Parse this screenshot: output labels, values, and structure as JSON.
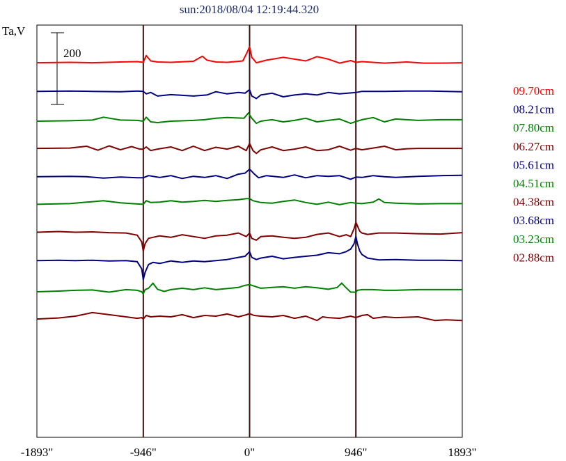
{
  "title": "sun:2018/08/04 12:19:44.320",
  "ylabel": "Ta,V",
  "scale_bar_label": "200",
  "chart_data": {
    "type": "line",
    "xlim": [
      -1893,
      1893
    ],
    "ylim": [
      -100,
      1050
    ],
    "x_tick_values": [
      -1893,
      -946,
      0,
      946,
      1893
    ],
    "x_tick_labels": [
      "-1893\"",
      "-946\"",
      "0\"",
      "946\"",
      "1893\""
    ],
    "vlines": [
      -946,
      0,
      946
    ],
    "scale_bar": {
      "label": "200",
      "value": 200
    },
    "grid": false,
    "legend_position": "right",
    "series": [
      {
        "name": "09.70cm",
        "color": "#ff0000",
        "x": [
          -1893,
          -1600,
          -1400,
          -1150,
          -1000,
          -946,
          -920,
          -880,
          -820,
          -700,
          -500,
          -420,
          -380,
          -300,
          -200,
          -60,
          -20,
          0,
          20,
          60,
          150,
          300,
          500,
          600,
          700,
          800,
          900,
          946,
          1000,
          1200,
          1400,
          1550,
          1700,
          1893
        ],
        "y": [
          945,
          946,
          945,
          947,
          948,
          946,
          965,
          950,
          947,
          946,
          949,
          963,
          952,
          947,
          946,
          950,
          975,
          990,
          960,
          945,
          952,
          960,
          950,
          962,
          955,
          944,
          951,
          946,
          948,
          944,
          947,
          944,
          944,
          945
        ]
      },
      {
        "name": "08.21cm",
        "color": "#000080",
        "x": [
          -1893,
          -1600,
          -1400,
          -1150,
          -1000,
          -946,
          -920,
          -880,
          -820,
          -700,
          -500,
          -380,
          -300,
          -200,
          -100,
          -40,
          0,
          20,
          60,
          100,
          200,
          300,
          400,
          500,
          600,
          700,
          800,
          946,
          1000,
          1200,
          1400,
          1600,
          1893
        ],
        "y": [
          865,
          866,
          865,
          864,
          866,
          865,
          858,
          862,
          852,
          856,
          852,
          855,
          864,
          858,
          862,
          860,
          870,
          852,
          845,
          855,
          860,
          850,
          855,
          858,
          855,
          862,
          858,
          862,
          865,
          865,
          866,
          866,
          864
        ]
      },
      {
        "name": "07.80cm",
        "color": "#008000",
        "x": [
          -1893,
          -1600,
          -1400,
          -1300,
          -1150,
          -1000,
          -946,
          -920,
          -880,
          -820,
          -700,
          -500,
          -400,
          -300,
          -200,
          -50,
          -10,
          20,
          60,
          100,
          200,
          300,
          400,
          500,
          600,
          700,
          800,
          900,
          946,
          1000,
          1100,
          1200,
          1300,
          1500,
          1700,
          1893
        ],
        "y": [
          782,
          783,
          785,
          793,
          785,
          784,
          782,
          793,
          780,
          778,
          782,
          784,
          786,
          790,
          792,
          790,
          805,
          790,
          776,
          782,
          786,
          780,
          784,
          790,
          780,
          784,
          788,
          776,
          781,
          786,
          792,
          780,
          788,
          784,
          786,
          786
        ]
      },
      {
        "name": "06.27cm",
        "color": "#800000",
        "x": [
          -1893,
          -1600,
          -1450,
          -1350,
          -1250,
          -1150,
          -1050,
          -980,
          -946,
          -920,
          -880,
          -820,
          -700,
          -600,
          -500,
          -400,
          -300,
          -200,
          -100,
          -30,
          0,
          30,
          60,
          100,
          200,
          300,
          400,
          500,
          600,
          700,
          800,
          900,
          946,
          1000,
          1100,
          1200,
          1300,
          1400,
          1500,
          1700,
          1893
        ],
        "y": [
          706,
          707,
          712,
          701,
          713,
          702,
          711,
          704,
          704,
          710,
          700,
          704,
          710,
          700,
          712,
          700,
          709,
          704,
          712,
          700,
          720,
          700,
          692,
          702,
          710,
          700,
          704,
          710,
          700,
          702,
          712,
          701,
          706,
          702,
          707,
          712,
          702,
          705,
          706,
          706,
          706
        ]
      },
      {
        "name": "05.61cm",
        "color": "#000080",
        "x": [
          -1893,
          -1600,
          -1450,
          -1300,
          -1150,
          -1000,
          -946,
          -900,
          -800,
          -700,
          -600,
          -500,
          -400,
          -300,
          -200,
          -100,
          -40,
          0,
          40,
          80,
          150,
          300,
          400,
          500,
          600,
          700,
          800,
          900,
          946,
          1000,
          1100,
          1200,
          1300,
          1500,
          1700,
          1893
        ],
        "y": [
          627,
          628,
          627,
          623,
          626,
          624,
          624,
          630,
          625,
          630,
          622,
          628,
          625,
          630,
          622,
          634,
          637,
          648,
          635,
          624,
          630,
          625,
          632,
          624,
          630,
          628,
          630,
          620,
          626,
          625,
          630,
          627,
          625,
          628,
          630,
          631
        ]
      },
      {
        "name": "04.51cm",
        "color": "#008000",
        "x": [
          -1893,
          -1600,
          -1450,
          -1300,
          -1150,
          -1000,
          -946,
          -920,
          -880,
          -800,
          -700,
          -600,
          -500,
          -400,
          -300,
          -200,
          -100,
          -30,
          0,
          30,
          100,
          200,
          300,
          400,
          500,
          600,
          700,
          800,
          900,
          946,
          1000,
          1100,
          1150,
          1200,
          1300,
          1500,
          1700,
          1893
        ],
        "y": [
          550,
          552,
          556,
          560,
          554,
          551,
          550,
          560,
          555,
          556,
          560,
          556,
          558,
          561,
          558,
          561,
          563,
          566,
          566,
          560,
          555,
          553,
          558,
          562,
          555,
          550,
          556,
          549,
          555,
          553,
          552,
          556,
          565,
          555,
          553,
          551,
          552,
          552
        ]
      },
      {
        "name": "04.38cm",
        "color": "#800000",
        "x": [
          -1893,
          -1700,
          -1550,
          -1400,
          -1250,
          -1100,
          -1000,
          -960,
          -946,
          -930,
          -900,
          -860,
          -800,
          -700,
          -600,
          -500,
          -400,
          -300,
          -200,
          -100,
          -30,
          0,
          20,
          60,
          100,
          200,
          300,
          400,
          500,
          600,
          700,
          800,
          860,
          900,
          930,
          946,
          960,
          980,
          1000,
          1050,
          1150,
          1300,
          1500,
          1700,
          1893
        ],
        "y": [
          472,
          474,
          472,
          473,
          471,
          470,
          464,
          445,
          420,
          440,
          455,
          458,
          462,
          458,
          465,
          460,
          455,
          462,
          464,
          470,
          460,
          470,
          455,
          450,
          460,
          462,
          458,
          455,
          458,
          466,
          470,
          460,
          465,
          460,
          482,
          500,
          490,
          475,
          470,
          466,
          470,
          470,
          468,
          467,
          471
        ]
      },
      {
        "name": "03.68cm",
        "color": "#000080",
        "x": [
          -1893,
          -1700,
          -1550,
          -1400,
          -1250,
          -1100,
          -1000,
          -960,
          -946,
          -930,
          -900,
          -860,
          -800,
          -700,
          -600,
          -500,
          -400,
          -300,
          -200,
          -100,
          -40,
          0,
          20,
          60,
          100,
          200,
          300,
          400,
          500,
          600,
          700,
          800,
          860,
          900,
          930,
          946,
          960,
          980,
          1000,
          1050,
          1150,
          1300,
          1500,
          1700,
          1893
        ],
        "y": [
          393,
          394,
          393,
          394,
          392,
          393,
          390,
          370,
          340,
          360,
          382,
          388,
          385,
          392,
          388,
          392,
          390,
          393,
          396,
          402,
          405,
          418,
          402,
          396,
          400,
          405,
          398,
          402,
          405,
          408,
          415,
          412,
          418,
          425,
          440,
          460,
          440,
          420,
          410,
          400,
          395,
          396,
          394,
          394,
          393
        ]
      },
      {
        "name": "03.23cm",
        "color": "#008000",
        "x": [
          -1893,
          -1700,
          -1550,
          -1400,
          -1250,
          -1100,
          -1000,
          -960,
          -946,
          -930,
          -900,
          -860,
          -820,
          -760,
          -700,
          -600,
          -500,
          -400,
          -300,
          -200,
          -100,
          -40,
          0,
          40,
          100,
          200,
          300,
          400,
          500,
          600,
          700,
          780,
          820,
          850,
          900,
          930,
          946,
          960,
          1000,
          1100,
          1200,
          1300,
          1500,
          1700,
          1893
        ],
        "y": [
          306,
          308,
          310,
          311,
          305,
          312,
          310,
          306,
          300,
          312,
          316,
          330,
          313,
          307,
          312,
          316,
          312,
          317,
          312,
          315,
          318,
          324,
          326,
          322,
          316,
          318,
          320,
          316,
          320,
          317,
          313,
          318,
          330,
          320,
          305,
          305,
          304,
          310,
          312,
          312,
          310,
          310,
          312,
          312,
          312
        ]
      },
      {
        "name": "02.88cm",
        "color": "#800000",
        "x": [
          -1893,
          -1700,
          -1550,
          -1400,
          -1250,
          -1100,
          -1000,
          -960,
          -946,
          -920,
          -880,
          -800,
          -700,
          -600,
          -500,
          -400,
          -300,
          -200,
          -100,
          -40,
          0,
          40,
          100,
          200,
          300,
          400,
          500,
          600,
          650,
          700,
          800,
          900,
          946,
          1000,
          1050,
          1100,
          1200,
          1300,
          1500,
          1650,
          1750,
          1893
        ],
        "y": [
          230,
          233,
          238,
          248,
          242,
          236,
          232,
          234,
          230,
          240,
          236,
          238,
          236,
          242,
          234,
          240,
          238,
          244,
          236,
          241,
          245,
          240,
          238,
          236,
          240,
          232,
          238,
          226,
          236,
          234,
          232,
          238,
          234,
          240,
          242,
          232,
          236,
          234,
          236,
          226,
          228,
          226
        ]
      }
    ]
  }
}
